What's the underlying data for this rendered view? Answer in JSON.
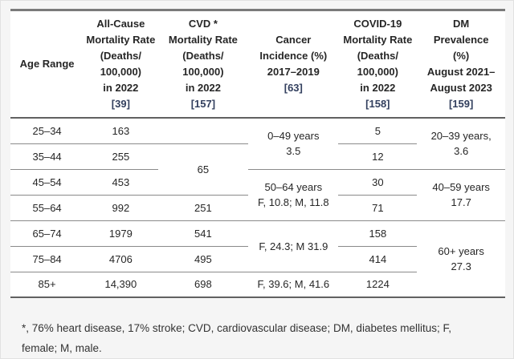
{
  "colors": {
    "page_background": "#f5f5f5",
    "table_background": "#ffffff",
    "reference_link": "#323f5e",
    "heavy_border": "#616161",
    "row_border": "#8a8a8a",
    "text": "#262626"
  },
  "table": {
    "header": {
      "age": "Age Range",
      "columns": [
        {
          "name": "all_cause",
          "lines": [
            "All-Cause",
            "Mortality Rate",
            "(Deaths/",
            "100,000)",
            "in 2022"
          ],
          "ref": "[39]"
        },
        {
          "name": "cvd",
          "lines": [
            "CVD *",
            "Mortality Rate",
            "(Deaths/",
            "100,000)",
            "in 2022"
          ],
          "ref": "[157]"
        },
        {
          "name": "cancer",
          "lines": [
            "Cancer",
            "Incidence (%)",
            "2017–2019"
          ],
          "ref": "[63]"
        },
        {
          "name": "covid19",
          "lines": [
            "COVID-19",
            "Mortality Rate",
            "(Deaths/",
            "100,000)",
            "in 2022"
          ],
          "ref": "[158]"
        },
        {
          "name": "dm",
          "lines": [
            "DM",
            "Prevalence",
            "(%)",
            "August 2021–",
            "August 2023"
          ],
          "ref": "[159]"
        }
      ]
    },
    "rows": {
      "age": [
        "25–34",
        "35–44",
        "45–54",
        "55–64",
        "65–74",
        "75–84",
        "85+"
      ],
      "all_cause": [
        "163",
        "255",
        "453",
        "992",
        "1979",
        "4706",
        "14,390"
      ],
      "cvd": {
        "r25_34": "",
        "r35_54": "65",
        "r55_64": "251",
        "r65_74": "541",
        "r75_84": "495",
        "r85": "698"
      },
      "cancer": {
        "r0_49": {
          "l1": "0–49 years",
          "l2": "3.5"
        },
        "r50_64": {
          "l1": "50–64 years",
          "l2": "F, 10.8; M, 11.8"
        },
        "r65_84": "F, 24.3; M 31.9",
        "r85": "F, 39.6; M, 41.6"
      },
      "covid19": [
        "5",
        "12",
        "30",
        "71",
        "158",
        "414",
        "1224"
      ],
      "dm": {
        "r20_39": {
          "l1": "20–39 years,",
          "l2": "3.6"
        },
        "r40_59": {
          "l1": "40–59 years",
          "l2": "17.7"
        },
        "r60plus": {
          "l1": "60+ years",
          "l2": "27.3"
        }
      }
    }
  },
  "footnote": {
    "lines": [
      "*, 76% heart disease, 17% stroke; CVD, cardiovascular disease; DM, diabetes mellitus; F,",
      "female; M, male."
    ]
  }
}
